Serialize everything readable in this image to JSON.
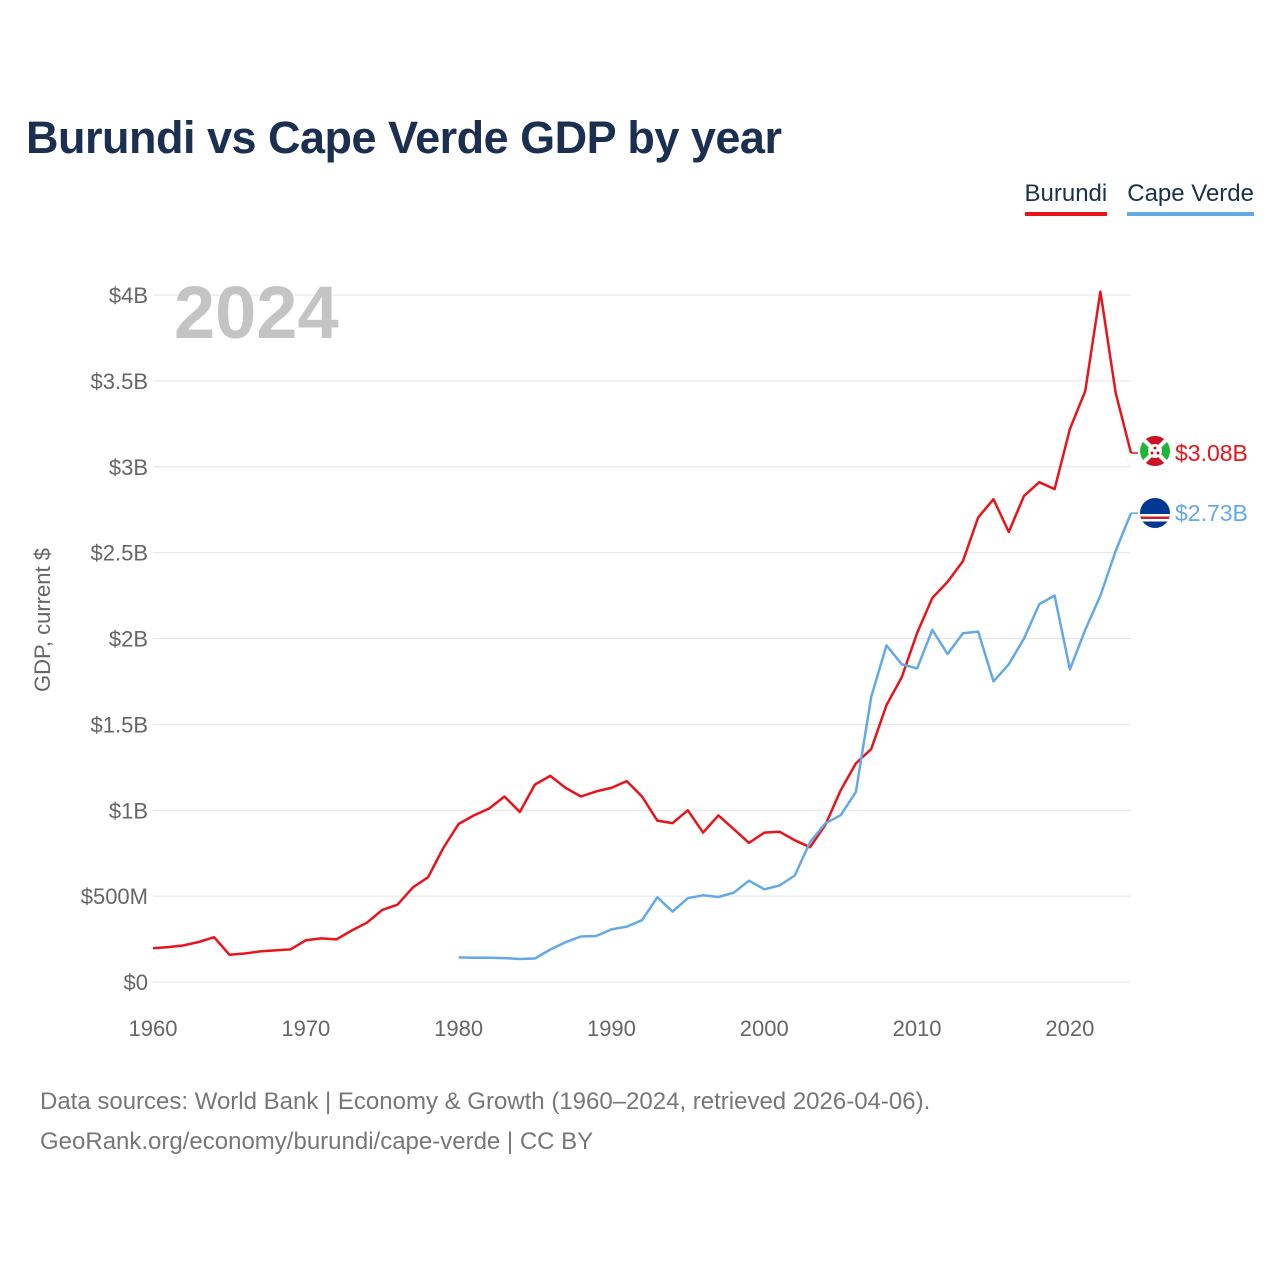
{
  "title": "Burundi vs Cape Verde GDP by year",
  "legend": [
    {
      "label": "Burundi",
      "color": "#e8141a"
    },
    {
      "label": "Cape Verde",
      "color": "#63a9e6"
    }
  ],
  "year_label": "2024",
  "footer": {
    "line1": "Data sources: World Bank | Economy & Growth (1960–2024, retrieved 2026-04-06).",
    "line2": "GeoRank.org/economy/burundi/cape-verde | CC BY"
  },
  "chart_data": {
    "type": "line",
    "ylabel": "GDP, current $",
    "xlabel": "",
    "xlim": [
      1960,
      2024
    ],
    "ylim": [
      0,
      4000000000
    ],
    "x_ticks": [
      1960,
      1970,
      1980,
      1990,
      2000,
      2010,
      2020
    ],
    "y_ticks": [
      {
        "value": 0,
        "label": "$0"
      },
      {
        "value": 500000000,
        "label": "$500M"
      },
      {
        "value": 1000000000,
        "label": "$1B"
      },
      {
        "value": 1500000000,
        "label": "$1.5B"
      },
      {
        "value": 2000000000,
        "label": "$2B"
      },
      {
        "value": 2500000000,
        "label": "$2.5B"
      },
      {
        "value": 3000000000,
        "label": "$3B"
      },
      {
        "value": 3500000000,
        "label": "$3.5B"
      },
      {
        "value": 4000000000,
        "label": "$4B"
      }
    ],
    "grid": true,
    "series": [
      {
        "name": "Burundi",
        "color": "#e8141a",
        "end_label": "$3.08B",
        "flag": "burundi-flag-icon",
        "start_year": 1960,
        "values": [
          0.196,
          0.203,
          0.213,
          0.233,
          0.261,
          0.159,
          0.166,
          0.178,
          0.184,
          0.19,
          0.243,
          0.254,
          0.248,
          0.3,
          0.345,
          0.42,
          0.45,
          0.55,
          0.61,
          0.78,
          0.92,
          0.97,
          1.01,
          1.08,
          0.99,
          1.15,
          1.2,
          1.13,
          1.08,
          1.11,
          1.13,
          1.17,
          1.08,
          0.94,
          0.925,
          1.0,
          0.87,
          0.97,
          0.89,
          0.81,
          0.87,
          0.875,
          0.825,
          0.785,
          0.915,
          1.117,
          1.273,
          1.356,
          1.612,
          1.775,
          2.032,
          2.236,
          2.33,
          2.45,
          2.705,
          2.811,
          2.62,
          2.83,
          2.91,
          2.87,
          3.22,
          3.44,
          4.02,
          3.43,
          3.08
        ]
      },
      {
        "name": "Cape Verde",
        "color": "#63a9e6",
        "end_label": "$2.73B",
        "flag": "cape-verde-flag-icon",
        "start_year": 1980,
        "values": [
          0.143,
          0.141,
          0.141,
          0.139,
          0.134,
          0.137,
          0.189,
          0.232,
          0.265,
          0.268,
          0.306,
          0.322,
          0.36,
          0.493,
          0.41,
          0.488,
          0.505,
          0.495,
          0.52,
          0.59,
          0.54,
          0.562,
          0.62,
          0.815,
          0.924,
          0.971,
          1.107,
          1.66,
          1.96,
          1.85,
          1.826,
          2.05,
          1.91,
          2.03,
          2.04,
          1.75,
          1.85,
          2.0,
          2.2,
          2.25,
          1.82,
          2.05,
          2.25,
          2.51,
          2.73
        ]
      }
    ]
  }
}
